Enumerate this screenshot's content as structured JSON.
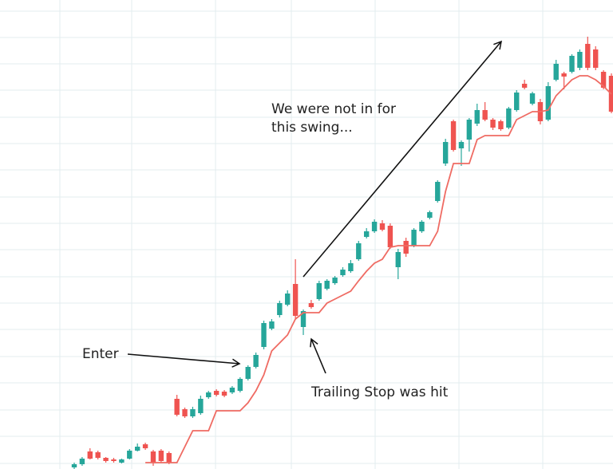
{
  "chart_data": {
    "type": "candlestick",
    "categories": [
      null,
      null,
      null,
      null,
      null,
      null,
      null,
      null,
      null,
      null,
      null,
      null,
      null,
      null,
      null,
      null,
      null,
      null,
      null,
      null,
      null,
      null,
      null,
      null,
      null,
      null,
      null,
      null,
      null,
      null,
      null,
      null,
      null,
      null,
      null,
      null,
      null,
      null,
      null,
      null,
      null,
      null,
      null,
      null,
      null,
      null,
      null,
      null,
      null,
      null,
      null,
      null,
      null,
      null,
      null,
      null,
      null,
      null,
      null,
      null,
      null,
      null,
      null,
      null,
      null,
      null,
      null,
      null,
      null
    ],
    "open": [
      2,
      6,
      22,
      21,
      14,
      12,
      8,
      13,
      23,
      31,
      22,
      23,
      20,
      88,
      75,
      66,
      70,
      90,
      98,
      97,
      96,
      98,
      113,
      128,
      153,
      176,
      193,
      206,
      232,
      178,
      208,
      213,
      226,
      233,
      243,
      248,
      263,
      291,
      298,
      308,
      305,
      253,
      286,
      280,
      298,
      315,
      336,
      383,
      436,
      402,
      413,
      433,
      450,
      438,
      436,
      428,
      450,
      483,
      458,
      460,
      438,
      488,
      496,
      498,
      503,
      533,
      526,
      498,
      493
    ],
    "high": [
      8,
      15,
      26,
      23,
      15,
      14,
      13,
      25,
      32,
      33,
      24,
      25,
      22,
      93,
      77,
      78,
      92,
      98,
      100,
      99,
      104,
      115,
      130,
      146,
      186,
      188,
      211,
      224,
      263,
      200,
      212,
      236,
      238,
      242,
      253,
      262,
      286,
      302,
      313,
      312,
      308,
      276,
      290,
      302,
      312,
      324,
      362,
      414,
      438,
      412,
      440,
      458,
      460,
      440,
      438,
      454,
      475,
      488,
      473,
      464,
      485,
      513,
      498,
      520,
      526,
      542,
      530,
      500,
      496
    ],
    "low": [
      0,
      4,
      12,
      12,
      8,
      8,
      7,
      12,
      22,
      24,
      4,
      8,
      6,
      66,
      64,
      64,
      68,
      88,
      91,
      90,
      94,
      96,
      111,
      126,
      150,
      174,
      190,
      204,
      188,
      168,
      201,
      211,
      224,
      231,
      241,
      246,
      261,
      289,
      296,
      298,
      276,
      238,
      266,
      278,
      296,
      313,
      334,
      380,
      398,
      380,
      398,
      430,
      436,
      425,
      424,
      426,
      448,
      476,
      456,
      432,
      436,
      486,
      476,
      496,
      500,
      500,
      500,
      476,
      446
    ],
    "close": [
      6,
      13,
      13,
      14,
      10,
      10,
      12,
      23,
      28,
      26,
      8,
      10,
      8,
      68,
      66,
      75,
      88,
      96,
      93,
      92,
      102,
      113,
      128,
      143,
      183,
      185,
      208,
      220,
      192,
      198,
      203,
      233,
      236,
      240,
      250,
      258,
      283,
      298,
      310,
      300,
      278,
      272,
      270,
      300,
      310,
      322,
      360,
      410,
      400,
      410,
      438,
      450,
      438,
      428,
      426,
      452,
      472,
      478,
      471,
      436,
      480,
      508,
      492,
      518,
      523,
      503,
      503,
      478,
      448
    ],
    "up_color": "#26a69a",
    "down_color": "#ef5350",
    "series": [
      {
        "color": "#ef6b63",
        "values": [
          null,
          null,
          null,
          null,
          null,
          null,
          null,
          null,
          null,
          8,
          8,
          8,
          8,
          8,
          28,
          48,
          48,
          48,
          73,
          73,
          73,
          73,
          83,
          98,
          118,
          148,
          158,
          168,
          188,
          196,
          196,
          196,
          208,
          213,
          218,
          223,
          236,
          248,
          258,
          263,
          278,
          280,
          280,
          280,
          280,
          280,
          298,
          348,
          383,
          383,
          383,
          413,
          418,
          418,
          418,
          418,
          438,
          443,
          448,
          448,
          450,
          468,
          478,
          488,
          493,
          493,
          488,
          480,
          470
        ]
      }
    ],
    "ylim": [
      0,
      588
    ],
    "yticks": [
      7,
      41,
      74,
      108,
      141,
      175,
      208,
      241,
      275,
      308,
      341,
      375,
      408,
      441,
      475,
      508,
      541,
      574
    ],
    "grid": true,
    "annotations": [
      {
        "lines": [
          "We were not in for",
          "this swing..."
        ]
      },
      {
        "lines": [
          "Enter"
        ]
      },
      {
        "lines": [
          "Trailing Stop was hit"
        ]
      }
    ]
  }
}
